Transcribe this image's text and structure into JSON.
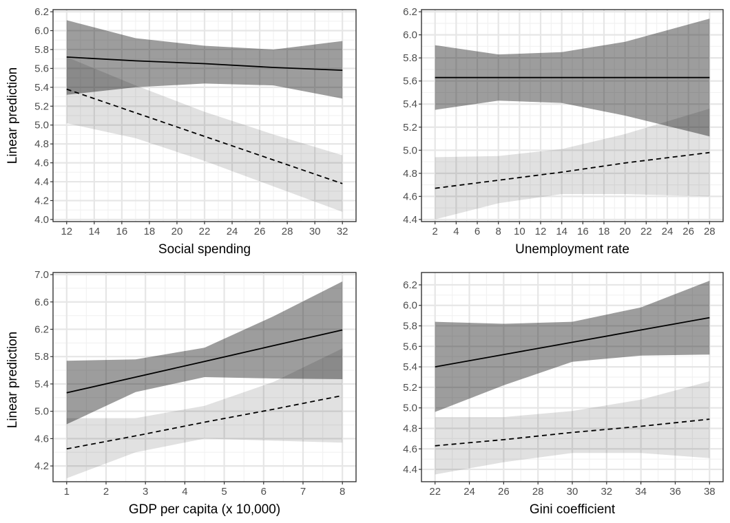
{
  "figure": {
    "ylabel": "Linear prediction"
  },
  "colors": {
    "band_dark": "#8c8c8c",
    "band_light": "#e1e1e1",
    "line": "#000000"
  },
  "chart_data": [
    {
      "type": "line",
      "xlabel": "Social spending",
      "ylabel": "Linear prediction",
      "xlim": [
        12,
        32
      ],
      "ylim": [
        4.0,
        6.2
      ],
      "xticks": [
        12,
        14,
        16,
        18,
        20,
        22,
        24,
        26,
        28,
        30,
        32
      ],
      "yticks": [
        4.0,
        4.2,
        4.4,
        4.6,
        4.8,
        5.0,
        5.2,
        5.4,
        5.6,
        5.8,
        6.0,
        6.2
      ],
      "tick_decimals": 1,
      "series": [
        {
          "style": "dashed",
          "band": "light",
          "x": [
            12,
            17,
            22,
            27,
            32
          ],
          "y": [
            5.38,
            5.13,
            4.88,
            4.63,
            4.38
          ],
          "lower": [
            5.02,
            4.86,
            4.62,
            4.35,
            4.08
          ],
          "upper": [
            5.72,
            5.42,
            5.14,
            4.9,
            4.68
          ]
        },
        {
          "style": "solid",
          "band": "dark",
          "x": [
            12,
            17,
            22,
            27,
            32
          ],
          "y": [
            5.72,
            5.68,
            5.65,
            5.61,
            5.58
          ],
          "lower": [
            5.32,
            5.4,
            5.44,
            5.42,
            5.28
          ],
          "upper": [
            6.11,
            5.92,
            5.84,
            5.8,
            5.89
          ]
        }
      ]
    },
    {
      "type": "line",
      "xlabel": "Unemployment rate",
      "ylabel": "",
      "xlim": [
        2,
        28
      ],
      "ylim": [
        4.4,
        6.2
      ],
      "xticks": [
        2,
        4,
        6,
        8,
        10,
        12,
        14,
        16,
        18,
        20,
        22,
        24,
        26,
        28
      ],
      "yticks": [
        4.4,
        4.6,
        4.8,
        5.0,
        5.2,
        5.4,
        5.6,
        5.8,
        6.0,
        6.2
      ],
      "tick_decimals": 1,
      "series": [
        {
          "style": "dashed",
          "band": "light",
          "x": [
            2,
            8,
            14,
            20,
            28
          ],
          "y": [
            4.67,
            4.74,
            4.81,
            4.89,
            4.98
          ],
          "lower": [
            4.4,
            4.54,
            4.62,
            4.62,
            4.6
          ],
          "upper": [
            4.94,
            4.95,
            5.01,
            5.14,
            5.36
          ]
        },
        {
          "style": "solid",
          "band": "dark",
          "x": [
            2,
            8,
            14,
            20,
            28
          ],
          "y": [
            5.63,
            5.63,
            5.63,
            5.63,
            5.63
          ],
          "lower": [
            5.35,
            5.43,
            5.41,
            5.3,
            5.12
          ],
          "upper": [
            5.91,
            5.83,
            5.85,
            5.94,
            6.14
          ]
        }
      ]
    },
    {
      "type": "line",
      "xlabel": "GDP per capita (x 10,000)",
      "ylabel": "Linear prediction",
      "xlim": [
        1,
        8
      ],
      "ylim": [
        4.0,
        7.0
      ],
      "xticks": [
        1,
        2,
        3,
        4,
        5,
        6,
        7,
        8
      ],
      "yticks": [
        4.2,
        4.6,
        5.0,
        5.4,
        5.8,
        6.2,
        6.6,
        7.0
      ],
      "tick_decimals": 1,
      "series": [
        {
          "style": "dashed",
          "band": "light",
          "x": [
            1,
            2.75,
            4.5,
            6.25,
            8
          ],
          "y": [
            4.45,
            4.64,
            4.84,
            5.03,
            5.23
          ],
          "lower": [
            4.02,
            4.4,
            4.6,
            4.57,
            4.54
          ],
          "upper": [
            4.9,
            4.9,
            5.08,
            5.43,
            5.92
          ]
        },
        {
          "style": "solid",
          "band": "dark",
          "x": [
            1,
            2.75,
            4.5,
            6.25,
            8
          ],
          "y": [
            5.27,
            5.5,
            5.73,
            5.96,
            6.19
          ],
          "lower": [
            4.81,
            5.28,
            5.5,
            5.48,
            5.47
          ],
          "upper": [
            5.74,
            5.76,
            5.93,
            6.39,
            6.9
          ]
        }
      ]
    },
    {
      "type": "line",
      "xlabel": "Gini coefficient",
      "ylabel": "",
      "xlim": [
        22,
        38
      ],
      "ylim": [
        4.3,
        6.3
      ],
      "xticks": [
        22,
        24,
        26,
        28,
        30,
        32,
        34,
        36,
        38
      ],
      "yticks": [
        4.4,
        4.6,
        4.8,
        5.0,
        5.2,
        5.4,
        5.6,
        5.8,
        6.0,
        6.2
      ],
      "tick_decimals": 1,
      "series": [
        {
          "style": "dashed",
          "band": "light",
          "x": [
            22,
            26,
            30,
            34,
            38
          ],
          "y": [
            4.63,
            4.69,
            4.76,
            4.82,
            4.89
          ],
          "lower": [
            4.35,
            4.47,
            4.56,
            4.56,
            4.51
          ],
          "upper": [
            4.91,
            4.91,
            4.97,
            5.08,
            5.26
          ]
        },
        {
          "style": "solid",
          "band": "dark",
          "x": [
            22,
            26,
            30,
            34,
            38
          ],
          "y": [
            5.4,
            5.52,
            5.64,
            5.76,
            5.88
          ],
          "lower": [
            4.96,
            5.22,
            5.45,
            5.51,
            5.52
          ],
          "upper": [
            5.84,
            5.82,
            5.84,
            5.98,
            6.24
          ]
        }
      ]
    }
  ]
}
